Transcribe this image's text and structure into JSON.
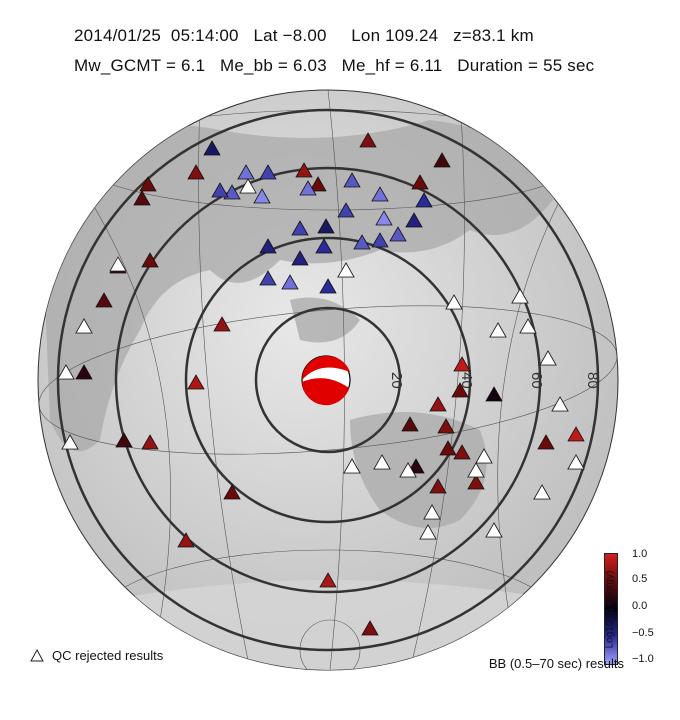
{
  "header": {
    "line1": "2014/01/25  05:14:00   Lat −8.00     Lon 109.24   z=83.1 km",
    "line2": "Mw_GCMT = 6.1   Me_bb = 6.03   Me_hf = 6.11   Duration = 55 sec"
  },
  "map": {
    "ring_labels": [
      "20",
      "40",
      "60",
      "80"
    ],
    "beachball_colors": {
      "fill": "#e00000",
      "blank": "#ffffff"
    }
  },
  "legend": {
    "qc_rejected": "QC rejected results",
    "bb_results": "BB (0.5–70 sec) results",
    "colorbar_title": "Log10 (Δ Energy)",
    "colorbar_ticks": [
      "1.0",
      "0.5",
      "0.0",
      "−0.5",
      "−1.0"
    ],
    "colorbar_range": [
      -1.0,
      1.0
    ],
    "colorbar_colors": [
      "#d41f1f",
      "#6a0b0b",
      "#000010",
      "#2a2a9a",
      "#a0a0ff"
    ]
  },
  "stations": [
    {
      "v": 0.6
    },
    {
      "v": -0.3
    },
    {
      "v": 0.5
    },
    {
      "v": 0.6
    },
    {
      "v": -0.8
    },
    {
      "v": -0.6
    },
    {
      "v": -0.7
    },
    {
      "v": 0.4
    },
    {
      "v": 0.7
    },
    {
      "v": 0.5
    },
    {
      "v": -0.7
    },
    {
      "v": -0.8
    },
    {
      "v": 0.5
    },
    {
      "v": 0.3
    },
    {
      "v": -0.6
    },
    {
      "v": -0.2
    },
    {
      "v": -0.9
    },
    {
      "v": -0.8
    },
    {
      "v": -0.6
    },
    {
      "v": -0.9
    },
    {
      "v": -0.5
    },
    {
      "v": -0.4
    },
    {
      "v": -0.6
    },
    {
      "v": -0.7
    },
    {
      "v": -0.3
    },
    {
      "v": -0.6
    },
    {
      "v": -0.5
    },
    {
      "v": -0.4
    },
    {
      "v": -0.7
    },
    {
      "v": -0.4
    },
    {
      "v": -0.5
    },
    {
      "v": -0.3
    },
    {
      "v": -0.6
    },
    {
      "v": -0.8
    },
    {
      "v": 0.5
    },
    {
      "v": 0.3
    },
    {
      "v": 0.4
    },
    {
      "v": 0.3
    },
    {
      "v": 0.7
    },
    {
      "v": 0.9
    },
    {
      "v": 0.5
    },
    {
      "v": 0.1
    },
    {
      "v": 0.8
    },
    {
      "v": 0.7
    },
    {
      "v": 0.4
    },
    {
      "v": 0.6
    },
    {
      "v": 0.6
    },
    {
      "v": 0.9
    },
    {
      "v": 0.5
    },
    {
      "v": 0.6
    },
    {
      "v": 0.6
    },
    {
      "v": 0.5
    },
    {
      "v": 0.7
    },
    {
      "v": 0.3
    },
    {
      "v": 0.2
    },
    {
      "v": 0.1
    },
    {
      "v": 0.9
    },
    {
      "v": 0.7
    },
    {
      "v": 0.8
    },
    {
      "v": 0.6
    },
    {
      "v": 0.5
    },
    {
      "v": 0.5
    },
    {
      "v": 0.6
    },
    {
      "v": 0.8
    },
    {
      "v": 0.4
    },
    {
      "v": 0.5
    },
    {
      "v": 0.6
    },
    {
      "v": 0.5
    },
    {
      "v": 0.4
    },
    {
      "v": 0.5
    },
    {
      "v": 0.4
    },
    {
      "v": 0.6
    },
    {
      "v": 0.8
    },
    {
      "v": 0.2
    },
    {
      "v": 0.7
    },
    {
      "v": 0.5
    },
    {
      "v": 0.6
    },
    {
      "v": 0.2
    }
  ]
}
